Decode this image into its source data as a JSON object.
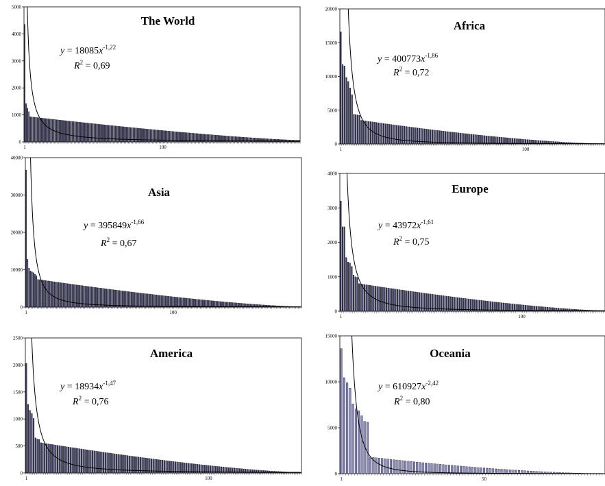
{
  "chart_data": [
    {
      "type": "bar",
      "title": "The World",
      "ylim": [
        0,
        5000
      ],
      "y_ticks": [
        "0",
        "1000",
        "2000",
        "3000",
        "4000",
        "5000"
      ],
      "x_ticks": [
        {
          "rank": 1,
          "label": "1"
        },
        {
          "rank": 100,
          "label": "100"
        }
      ],
      "n_ranks": 198,
      "bar_color": "#3a3a66",
      "head_values": [
        4350,
        1420,
        1250,
        1120
      ],
      "decay": {
        "start": 930,
        "end": 60,
        "power": 1.3
      },
      "fit": {
        "a": 18085,
        "b": -1.22,
        "equation_lhs": "y",
        "equation_rhs": " = 18085",
        "equation_var": "x",
        "exponent": "-1,22",
        "r2_label": "R",
        "r2_sup": "2",
        "r2_value": " = 0,69"
      }
    },
    {
      "type": "bar",
      "title": "Africa",
      "ylim": [
        0,
        20000
      ],
      "y_ticks": [
        "0",
        "5000",
        "10000",
        "15000",
        "20000"
      ],
      "x_ticks": [
        {
          "rank": 1,
          "label": "1"
        },
        {
          "rank": 100,
          "label": "100"
        }
      ],
      "n_ranks": 142,
      "bar_color": "#3a3a66",
      "head_values": [
        16600,
        11750,
        11550,
        9850,
        9250,
        8300,
        7300,
        4400,
        4350,
        4300,
        4250
      ],
      "decay": {
        "start": 3500,
        "end": 30,
        "power": 1.5
      },
      "fit": {
        "a": 400773,
        "b": -1.86,
        "equation_lhs": "y",
        "equation_rhs": " = 400773",
        "equation_var": "x",
        "exponent": "-1,86",
        "r2_label": "R",
        "r2_sup": "2",
        "r2_value": " = 0,72"
      }
    },
    {
      "type": "bar",
      "title": "Asia",
      "ylim": [
        0,
        40000
      ],
      "y_ticks": [
        "0",
        "10000",
        "20000",
        "30000",
        "40000"
      ],
      "x_ticks": [
        {
          "rank": 1,
          "label": "1"
        },
        {
          "rank": 100,
          "label": "100"
        }
      ],
      "n_ranks": 186,
      "bar_color": "#3a3a66",
      "head_values": [
        36700,
        12800,
        10400,
        9700,
        9400,
        9200,
        8800,
        8400
      ],
      "decay": {
        "start": 7400,
        "end": 100,
        "power": 1.4
      },
      "fit": {
        "a": 395849,
        "b": -1.66,
        "equation_lhs": "y",
        "equation_rhs": " = 395849",
        "equation_var": "x",
        "exponent": "-1,66",
        "r2_label": "R",
        "r2_sup": "2",
        "r2_value": " = 0,67"
      }
    },
    {
      "type": "bar",
      "title": "Europe",
      "ylim": [
        0,
        4000
      ],
      "y_ticks": [
        "0",
        "1000",
        "2000",
        "3000",
        "4000"
      ],
      "x_ticks": [
        {
          "rank": 1,
          "label": "1"
        },
        {
          "rank": 100,
          "label": "100"
        }
      ],
      "n_ranks": 145,
      "bar_color": "#3a3a66",
      "head_values": [
        3200,
        2450,
        2450,
        1560,
        1430,
        1400,
        1300,
        1050,
        1000,
        980
      ],
      "decay": {
        "start": 800,
        "end": 15,
        "power": 1.4
      },
      "fit": {
        "a": 43972,
        "b": -1.61,
        "equation_lhs": "y",
        "equation_rhs": " = 43972",
        "equation_var": "x",
        "exponent": "-1,61",
        "r2_label": "R",
        "r2_sup": "2",
        "r2_value": " = 0,75"
      }
    },
    {
      "type": "bar",
      "title": "America",
      "ylim": [
        0,
        2500
      ],
      "y_ticks": [
        "0",
        "500",
        "1000",
        "1500",
        "2000",
        "2500"
      ],
      "x_ticks": [
        {
          "rank": 1,
          "label": "1"
        },
        {
          "rank": 100,
          "label": "100"
        }
      ],
      "n_ranks": 150,
      "bar_color": "#3a3a66",
      "head_values": [
        2030,
        1270,
        1160,
        1100,
        1010,
        650,
        630,
        620
      ],
      "decay": {
        "start": 560,
        "end": 10,
        "power": 1.4
      },
      "fit": {
        "a": 18934,
        "b": -1.47,
        "equation_lhs": "y",
        "equation_rhs": " = 18934",
        "equation_var": "x",
        "exponent": "-1,47",
        "r2_label": "R",
        "r2_sup": "2",
        "r2_value": " = 0,76"
      }
    },
    {
      "type": "bar",
      "title": "Oceania",
      "ylim": [
        0,
        15000
      ],
      "y_ticks": [
        "0",
        "5000",
        "10000",
        "15000"
      ],
      "x_ticks": [
        {
          "rank": 1,
          "label": "1"
        },
        {
          "rank": 50,
          "label": "50"
        }
      ],
      "n_ranks": 91,
      "bar_color": "#8c8cc2",
      "head_values": [
        13600,
        10450,
        9900,
        9300,
        7600,
        7050,
        6850,
        6300,
        5700,
        5600
      ],
      "decay": {
        "start": 1800,
        "end": 5,
        "power": 1.6
      },
      "fit": {
        "a": 610927,
        "b": -2.42,
        "equation_lhs": "y",
        "equation_rhs": " = 610927",
        "equation_var": "x",
        "exponent": "-2,42",
        "r2_label": "R",
        "r2_sup": "2",
        "r2_value": " = 0,80"
      }
    }
  ]
}
